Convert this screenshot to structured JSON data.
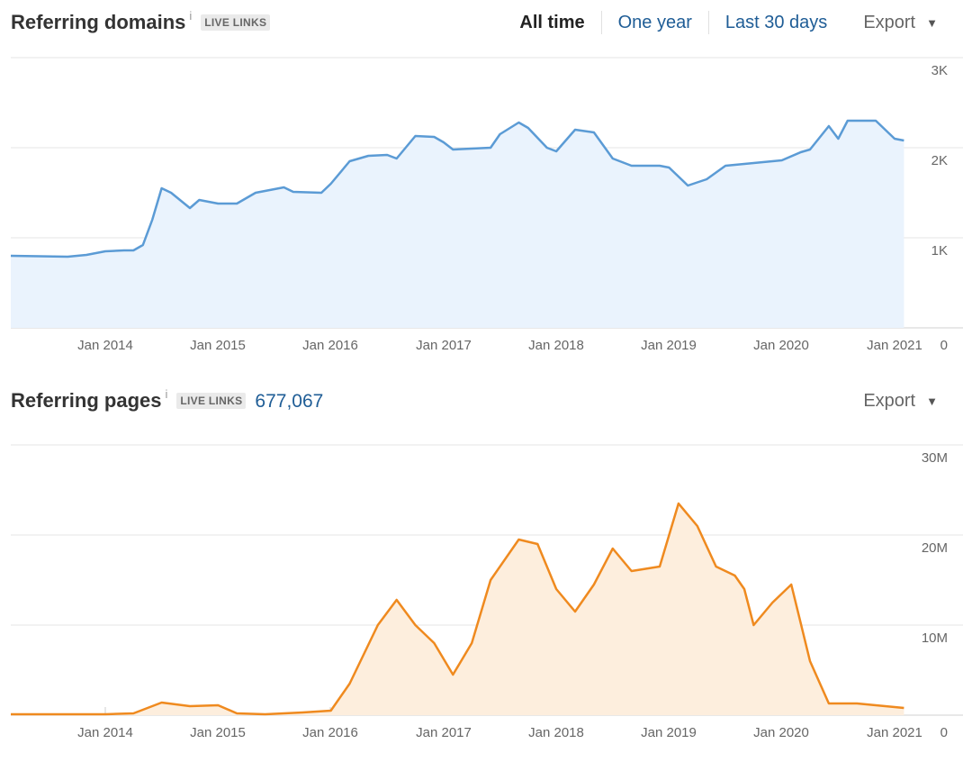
{
  "domains_section": {
    "title": "Referring domains",
    "info": "i",
    "badge": "LIVE LINKS",
    "range_options": [
      "All time",
      "One year",
      "Last 30 days"
    ],
    "active_range": "All time",
    "export_label": "Export",
    "caret": "▼"
  },
  "pages_section": {
    "title": "Referring pages",
    "info": "i",
    "badge": "LIVE LINKS",
    "total": "677,067",
    "export_label": "Export",
    "caret": "▼"
  },
  "colors": {
    "domains_line": "#5b9bd5",
    "domains_fill": "#eaf3fd",
    "pages_line": "#ef8a1f",
    "pages_fill": "#fdeedd",
    "grid": "#e6e6e6",
    "axis_text": "#666666"
  },
  "chart_data": [
    {
      "type": "area",
      "title": "Referring domains",
      "x_ticks": [
        "Jan 2014",
        "Jan 2015",
        "Jan 2016",
        "Jan 2017",
        "Jan 2018",
        "Jan 2019",
        "Jan 2020",
        "Jan 2021"
      ],
      "y_ticks": [
        "0",
        "1K",
        "2K",
        "3K"
      ],
      "ylim": [
        0,
        3000
      ],
      "xlim": [
        "2013-03",
        "2021-03"
      ],
      "grid": true,
      "series": [
        {
          "x": [
            "2013-03",
            "2013-06",
            "2013-09",
            "2013-11",
            "2014-01",
            "2014-03",
            "2014-04",
            "2014-05",
            "2014-06",
            "2014-07",
            "2014-08",
            "2014-10",
            "2014-11",
            "2015-01",
            "2015-03",
            "2015-05",
            "2015-08",
            "2015-09",
            "2015-12",
            "2016-01",
            "2016-03",
            "2016-05",
            "2016-07",
            "2016-08",
            "2016-10",
            "2016-12",
            "2017-01",
            "2017-02",
            "2017-06",
            "2017-07",
            "2017-09",
            "2017-10",
            "2017-12",
            "2018-01",
            "2018-03",
            "2018-05",
            "2018-07",
            "2018-09",
            "2018-12",
            "2019-01",
            "2019-03",
            "2019-05",
            "2019-07",
            "2019-09",
            "2019-11",
            "2020-01",
            "2020-03",
            "2020-04",
            "2020-06",
            "2020-07",
            "2020-08",
            "2020-11",
            "2021-01",
            "2021-02"
          ],
          "y": [
            800,
            795,
            790,
            810,
            850,
            860,
            860,
            920,
            1200,
            1550,
            1500,
            1330,
            1420,
            1380,
            1380,
            1500,
            1560,
            1510,
            1500,
            1600,
            1850,
            1910,
            1920,
            1880,
            2130,
            2120,
            2060,
            1980,
            2000,
            2150,
            2280,
            2220,
            2000,
            1960,
            2200,
            2170,
            1880,
            1800,
            1800,
            1780,
            1580,
            1650,
            1800,
            1820,
            1840,
            1860,
            1950,
            1980,
            2240,
            2100,
            2300,
            2300,
            2100,
            2080
          ]
        }
      ]
    },
    {
      "type": "area",
      "title": "Referring pages",
      "x_ticks": [
        "Jan 2014",
        "Jan 2015",
        "Jan 2016",
        "Jan 2017",
        "Jan 2018",
        "Jan 2019",
        "Jan 2020",
        "Jan 2021"
      ],
      "y_ticks": [
        "0",
        "10M",
        "20M",
        "30M"
      ],
      "ylim": [
        0,
        30000000
      ],
      "xlim": [
        "2013-03",
        "2021-03"
      ],
      "grid": true,
      "series": [
        {
          "x": [
            "2013-03",
            "2014-01",
            "2014-04",
            "2014-07",
            "2014-10",
            "2015-01",
            "2015-03",
            "2015-06",
            "2015-10",
            "2016-01",
            "2016-03",
            "2016-06",
            "2016-08",
            "2016-10",
            "2016-12",
            "2017-02",
            "2017-04",
            "2017-06",
            "2017-09",
            "2017-11",
            "2018-01",
            "2018-03",
            "2018-05",
            "2018-07",
            "2018-09",
            "2018-12",
            "2019-02",
            "2019-04",
            "2019-06",
            "2019-08",
            "2019-09",
            "2019-10",
            "2019-12",
            "2020-02",
            "2020-04",
            "2020-06",
            "2020-09",
            "2021-01",
            "2021-02"
          ],
          "y": [
            100000,
            100000,
            200000,
            1400000,
            1000000,
            1100000,
            200000,
            100000,
            300000,
            500000,
            3500000,
            10000000,
            12800000,
            10000000,
            8000000,
            4500000,
            8000000,
            15000000,
            19500000,
            19000000,
            14000000,
            11500000,
            14500000,
            18500000,
            16000000,
            16500000,
            23500000,
            21000000,
            16500000,
            15500000,
            14000000,
            10000000,
            12500000,
            14500000,
            6000000,
            1300000,
            1300000,
            900000,
            800000
          ]
        }
      ]
    }
  ]
}
